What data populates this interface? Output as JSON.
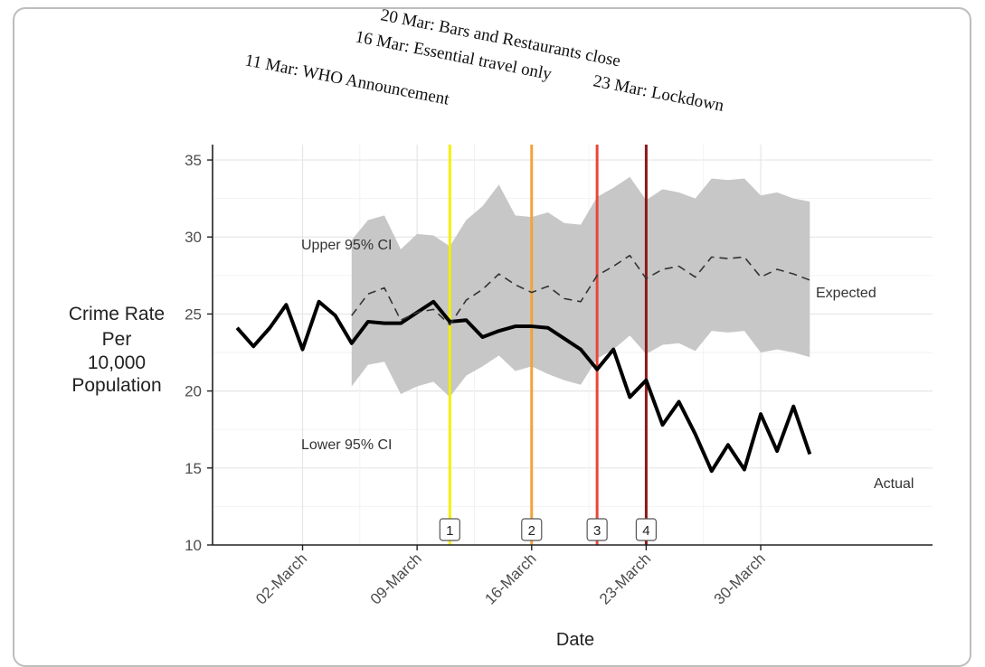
{
  "chart_data": {
    "type": "line",
    "xlabel": "Date",
    "ylabel_lines": [
      "Crime Rate",
      "Per",
      "10,000",
      "Population"
    ],
    "ylim": [
      10,
      36
    ],
    "yticks": [
      10,
      15,
      20,
      25,
      30,
      35
    ],
    "x_range_days": [
      -3.5,
      40.5
    ],
    "xticks": [
      {
        "label": "02-March",
        "day": 2
      },
      {
        "label": "09-March",
        "day": 9
      },
      {
        "label": "16-March",
        "day": 16
      },
      {
        "label": "23-March",
        "day": 23
      },
      {
        "label": "30-March",
        "day": 30
      }
    ],
    "grid": true,
    "series": [
      {
        "name": "Actual",
        "style": "solid",
        "color": "#000000",
        "x": [
          -2,
          -1,
          0,
          1,
          2,
          3,
          4,
          5,
          6,
          7,
          8,
          9,
          10,
          11,
          12,
          13,
          14,
          15,
          16,
          17,
          18,
          19,
          20,
          21,
          22,
          23,
          24,
          25,
          26,
          27,
          28,
          29,
          30,
          31,
          32,
          33
        ],
        "y": [
          24.1,
          22.9,
          24.1,
          25.6,
          22.7,
          25.8,
          24.9,
          23.1,
          24.5,
          24.4,
          24.4,
          25.1,
          25.8,
          24.5,
          24.6,
          23.5,
          23.9,
          24.2,
          24.2,
          24.1,
          23.4,
          22.7,
          21.4,
          22.7,
          19.6,
          20.7,
          17.8,
          19.3,
          17.2,
          14.8,
          16.5,
          14.9,
          18.5,
          16.1,
          19.0,
          15.9
        ]
      },
      {
        "name": "Expected",
        "style": "dashed",
        "color": "#333333",
        "x": [
          5,
          6,
          7,
          8,
          9,
          10,
          11,
          12,
          13,
          14,
          15,
          16,
          17,
          18,
          19,
          20,
          21,
          22,
          23,
          24,
          25,
          26,
          27,
          28,
          29,
          30,
          31,
          32,
          33
        ],
        "y": [
          24.9,
          26.3,
          26.7,
          24.6,
          25.1,
          25.3,
          24.3,
          25.9,
          26.6,
          27.6,
          26.9,
          26.4,
          26.8,
          26.0,
          25.8,
          27.5,
          28.1,
          28.8,
          27.3,
          27.9,
          28.1,
          27.4,
          28.7,
          28.6,
          28.7,
          27.4,
          27.9,
          27.6,
          27.2
        ]
      }
    ],
    "ci_band": {
      "x": [
        5,
        6,
        7,
        8,
        9,
        10,
        11,
        12,
        13,
        14,
        15,
        16,
        17,
        18,
        19,
        20,
        21,
        22,
        23,
        24,
        25,
        26,
        27,
        28,
        29,
        30,
        31,
        32,
        33
      ],
      "upper": [
        29.8,
        31.1,
        31.4,
        29.2,
        30.2,
        30.1,
        29.4,
        31.1,
        32.0,
        33.4,
        31.4,
        31.3,
        31.6,
        30.9,
        30.8,
        32.6,
        33.2,
        33.9,
        32.4,
        33.1,
        32.9,
        32.5,
        33.8,
        33.7,
        33.8,
        32.7,
        32.9,
        32.5,
        32.3
      ],
      "lower": [
        20.3,
        21.7,
        21.9,
        19.8,
        20.3,
        20.6,
        19.6,
        21.0,
        21.6,
        22.3,
        21.3,
        21.6,
        21.1,
        20.7,
        20.4,
        22.1,
        22.7,
        23.6,
        22.4,
        23.0,
        23.1,
        22.6,
        23.9,
        23.8,
        23.9,
        22.5,
        22.7,
        22.5,
        22.2
      ],
      "color": "#c7c7c7"
    },
    "annotations": {
      "upper_ci": "Upper 95% CI",
      "lower_ci": "Lower 95% CI",
      "expected": "Expected",
      "actual": "Actual"
    },
    "events": [
      {
        "day": 11,
        "color": "#f4f000",
        "label": "11 Mar: WHO Announcement",
        "marker": "1"
      },
      {
        "day": 16,
        "color": "#f2a33a",
        "label": "16 Mar: Essential travel only",
        "marker": "2"
      },
      {
        "day": 20,
        "color": "#e9463a",
        "label": "20 Mar: Bars and Restaurants close",
        "marker": "3"
      },
      {
        "day": 23,
        "color": "#8a1a1a",
        "label": "23 Mar: Lockdown",
        "marker": "4"
      }
    ]
  }
}
